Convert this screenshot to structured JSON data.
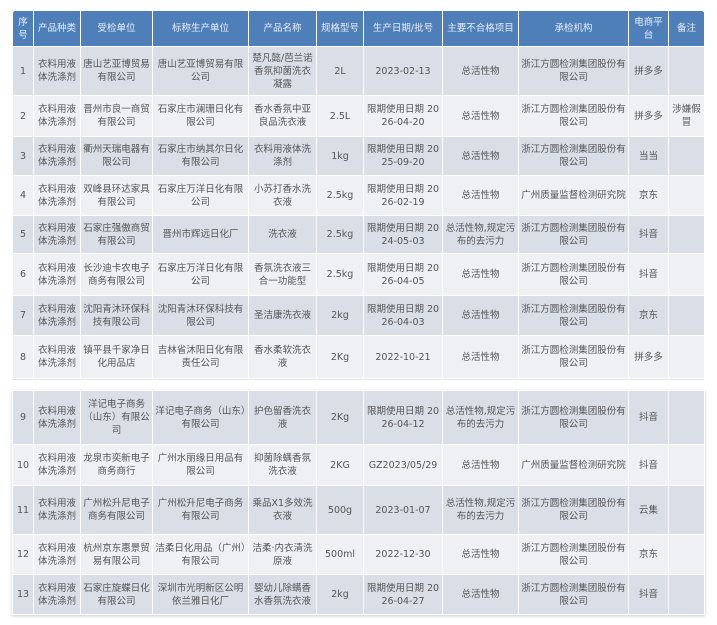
{
  "headers": [
    "序号",
    "产品种类",
    "受检单位",
    "标称生产单位",
    "产品名称",
    "规格型号",
    "生产日期/批号",
    "主要不合格项目",
    "承检机构",
    "电商平台",
    "备注"
  ],
  "rows": [
    [
      "1",
      "衣料用液体洗涤剂",
      "唐山艺亚博贸易有限公司",
      "唐山艺亚博贸易有限公司",
      "楚凡懿/芭兰诺香氛抑菌洗衣凝露",
      "2L",
      "2023-02-13",
      "总活性物",
      "浙江方圆检测集团股份有限公司",
      "拼多多",
      ""
    ],
    [
      "2",
      "衣料用液体洗涤剂",
      "晋州市良一商贸有限公司",
      "石家庄市澜珊日化有限公司",
      "香水香氛中亚良品洗衣液",
      "2.5L",
      "限期使用日期 2026-04-20",
      "总活性物",
      "浙江方圆检测集团股份有限公司",
      "拼多多",
      "涉嫌假冒"
    ],
    [
      "3",
      "衣料用液体洗涤剂",
      "衢州天瑞电器有限公司",
      "石家庄市纳其尔日化有限公司",
      "衣料用液体洗涤剂",
      "1kg",
      "限期使用日期 2025-09-20",
      "总活性物",
      "浙江方圆检测集团股份有限公司",
      "当当",
      ""
    ],
    [
      "4",
      "衣料用液体洗涤剂",
      "双峰县环达家具有限公司",
      "石家庄万洋日化有限公司",
      "小苏打香水洗衣液",
      "2.5kg",
      "限期使用日期 2026-02-19",
      "总活性物",
      "广州质量监督检测研究院",
      "京东",
      ""
    ],
    [
      "5",
      "衣料用液体洗涤剂",
      "石家庄强傲商贸有限公司",
      "晋州市辉远日化厂",
      "洗衣液",
      "2.5kg",
      "限期使用日期 2024-05-03",
      "总活性物,规定污布的去污力",
      "浙江方圆检测集团股份有限公司",
      "抖音",
      ""
    ],
    [
      "6",
      "衣料用液体洗涤剂",
      "长沙迪卡农电子商务有限公司",
      "石家庄万洋日化有限公司",
      "香氛洗衣液三合一功能型",
      "2.5kg",
      "限期使用日期 2026-04-05",
      "总活性物",
      "浙江方圆检测集团股份有限公司",
      "抖音",
      ""
    ],
    [
      "7",
      "衣料用液体洗涤剂",
      "沈阳青沐环保科技有限公司",
      "沈阳青沐环保科技有限公司",
      "圣洁康洗衣液",
      "2kg",
      "限期使用日期 2026-04-03",
      "总活性物",
      "浙江方圆检测集团股份有限公司",
      "京东",
      ""
    ],
    [
      "8",
      "衣料用液体洗涤剂",
      "镇平县千家净日化用品店",
      "吉林省沐阳日化有限责任公司",
      "香水柔软洗衣液",
      "2Kg",
      "2022-10-21",
      "总活性物",
      "浙江方圆检测集团股份有限公司",
      "拼多多",
      ""
    ]
  ],
  "rows2": [
    [
      "9",
      "衣料用液体洗涤剂",
      "洋记电子商务（山东）有限公司",
      "洋记电子商务（山东）有限公司",
      "护色留香洗衣液",
      "2Kg",
      "限期使用日期 2026-04-12",
      "总活性物,规定污布的去污力",
      "浙江方圆检测集团股份有限公司",
      "抖音",
      ""
    ],
    [
      "10",
      "衣料用液体洗涤剂",
      "龙泉市奕新电子商务商行",
      "广州水丽缘日用品有限公司",
      "抑菌除螨香氛洗衣液",
      "2KG",
      "GZ2023/05/29",
      "总活性物",
      "广州质量监督检测研究院",
      "抖音",
      ""
    ],
    [
      "11",
      "衣料用液体洗涤剂",
      "广州松升尼电子商务有限公司",
      "广州松升尼电子商务有限公司",
      "乘品X1多效洗衣液",
      "500g",
      "2023-01-07",
      "总活性物,规定污布的去污力",
      "浙江方圆检测集团股份有限公司",
      "云集",
      ""
    ],
    [
      "12",
      "衣料用液体洗涤剂",
      "杭州京东惠景贸易有限公司",
      "洁柔日化用品（广州）有限公司",
      "洁柔·内衣清洗原液",
      "500ml",
      "2022-12-30",
      "总活性物",
      "浙江方圆检测集团股份有限公司",
      "京东",
      ""
    ],
    [
      "13",
      "衣料用液体洗涤剂",
      "石家庄旋蝶日化有限公司",
      "深圳市光明新区公明依兰雅日化厂",
      "婴幼儿除螨香水香氛洗衣液",
      "2kg",
      "限期使用日期 2026-04-27",
      "总活性物",
      "浙江方圆检测集团股份有限公司",
      "抖音",
      ""
    ]
  ],
  "colors": {
    "header": "#4f7fb9",
    "row_dark": "#d9dee7",
    "row_light": "#eef0f4"
  }
}
